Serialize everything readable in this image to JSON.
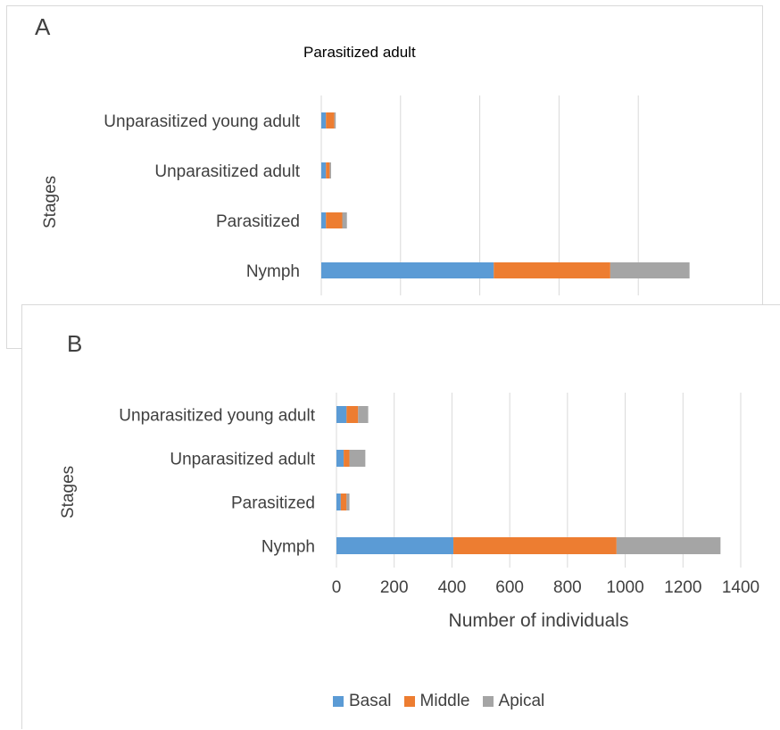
{
  "colors": {
    "basal": "#5B9BD5",
    "middle": "#ED7D31",
    "apical": "#A5A5A5",
    "grid": "#d9d9d9",
    "text": "#404040"
  },
  "panel_a": {
    "letter": "A",
    "title": "Parasitized adult",
    "ylabel": "Stages"
  },
  "panel_b": {
    "letter": "B",
    "ylabel": "Stages",
    "xlabel": "Number of individuals"
  },
  "legend": {
    "basal": "Basal",
    "middle": "Middle",
    "apical": "Apical"
  },
  "chart_data": [
    {
      "type": "bar",
      "orientation": "horizontal",
      "stacked": true,
      "title": "Parasitized adult",
      "panel": "A",
      "ylabel": "Stages",
      "categories": [
        "Nymph",
        "Parasitized",
        "Unparasitized adult",
        "Unparasitized young adult"
      ],
      "series": [
        {
          "name": "Basal",
          "values": [
            37,
            1,
            1,
            1
          ]
        },
        {
          "name": "Middle",
          "values": [
            25,
            3.5,
            0.8,
            1.8
          ]
        },
        {
          "name": "Apical",
          "values": [
            17,
            1,
            0.3,
            0.3
          ]
        }
      ],
      "xlim": [
        0,
        85
      ],
      "grid": true,
      "xtick_labels_visible": false
    },
    {
      "type": "bar",
      "orientation": "horizontal",
      "stacked": true,
      "panel": "B",
      "ylabel": "Stages",
      "xlabel": "Number of individuals",
      "categories": [
        "Nymph",
        "Parasitized",
        "Unparasitized adult",
        "Unparasitized young adult"
      ],
      "series": [
        {
          "name": "Basal",
          "values": [
            405,
            15,
            25,
            35
          ]
        },
        {
          "name": "Middle",
          "values": [
            565,
            20,
            20,
            40
          ]
        },
        {
          "name": "Apical",
          "values": [
            360,
            10,
            55,
            35
          ]
        }
      ],
      "xlim": [
        0,
        1400
      ],
      "xticks": [
        0,
        200,
        400,
        600,
        800,
        1000,
        1200,
        1400
      ],
      "grid": true,
      "legend_position": "bottom"
    }
  ]
}
